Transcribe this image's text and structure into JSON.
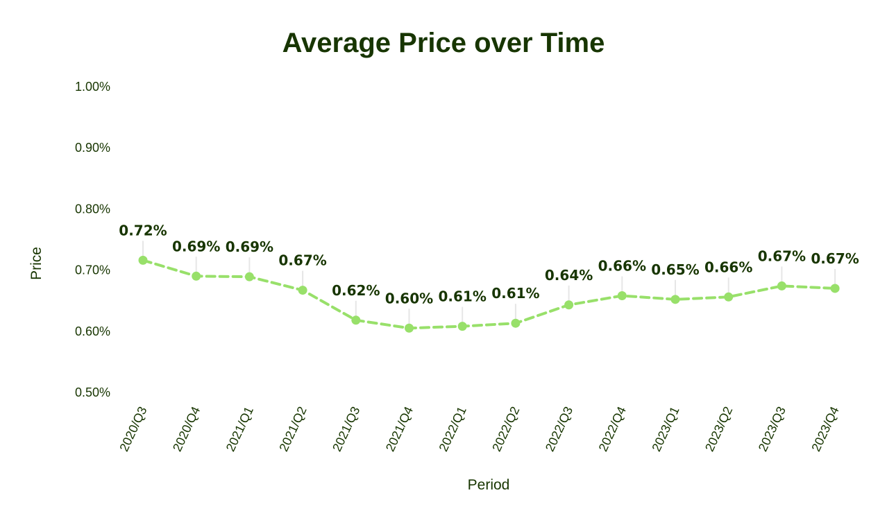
{
  "chart_data": {
    "type": "line",
    "title": "Average Price over Time",
    "xlabel": "Period",
    "ylabel": "Price",
    "categories": [
      "2020/Q3",
      "2020/Q4",
      "2021/Q1",
      "2021/Q2",
      "2021/Q3",
      "2021/Q4",
      "2022/Q1",
      "2022/Q2",
      "2022/Q3",
      "2022/Q4",
      "2023/Q1",
      "2023/Q2",
      "2023/Q3",
      "2023/Q4"
    ],
    "series": [
      {
        "values": [
          0.715,
          0.689,
          0.688,
          0.666,
          0.617,
          0.604,
          0.607,
          0.612,
          0.642,
          0.657,
          0.651,
          0.655,
          0.673,
          0.669
        ],
        "labels": [
          "0.72%",
          "0.69%",
          "0.69%",
          "0.67%",
          "0.62%",
          "0.60%",
          "0.61%",
          "0.61%",
          "0.64%",
          "0.66%",
          "0.65%",
          "0.66%",
          "0.67%",
          "0.67%"
        ]
      }
    ],
    "ylim": [
      0.5,
      1.0
    ],
    "yticks": [
      0.5,
      0.6,
      0.7,
      0.8,
      0.9,
      1.0
    ],
    "ytick_labels": [
      "0.50%",
      "0.60%",
      "0.70%",
      "0.80%",
      "0.90%",
      "1.00%"
    ],
    "line_style": "dashed",
    "markers": true,
    "grid": false,
    "legend": "none",
    "colors": {
      "line": "#98e06a",
      "text": "#173500",
      "leader": "#e6e6e6"
    }
  }
}
